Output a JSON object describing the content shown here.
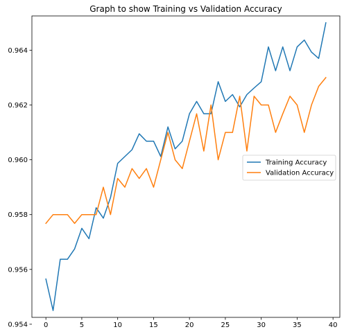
{
  "chart_data": {
    "type": "line",
    "title": "Graph to show Training vs Validation Accuracy",
    "xlabel": "",
    "ylabel": "",
    "xlim": [
      -1.95,
      40.95
    ],
    "ylim": [
      0.95425,
      0.96525
    ],
    "xticks": [
      0,
      5,
      10,
      15,
      20,
      25,
      30,
      35,
      40
    ],
    "yticks": [
      0.954,
      0.956,
      0.958,
      0.96,
      0.962,
      0.964
    ],
    "ytick_labels": [
      "0.954",
      "0.956",
      "0.958",
      "0.960",
      "0.962",
      "0.964"
    ],
    "grid": false,
    "legend_position": "center-right",
    "x": [
      0,
      1,
      2,
      3,
      4,
      5,
      6,
      7,
      8,
      9,
      10,
      11,
      12,
      13,
      14,
      15,
      16,
      17,
      18,
      19,
      20,
      21,
      22,
      23,
      24,
      25,
      26,
      27,
      28,
      29,
      30,
      31,
      32,
      33,
      34,
      35,
      36,
      37,
      38,
      39
    ],
    "series": [
      {
        "name": "Training Accuracy",
        "color": "#1f77b4",
        "values": [
          0.95565,
          0.9545,
          0.95637,
          0.95637,
          0.95675,
          0.9575,
          0.95712,
          0.95825,
          0.95787,
          0.95862,
          0.95987,
          0.96012,
          0.96037,
          0.96095,
          0.96068,
          0.96068,
          0.96012,
          0.9612,
          0.9604,
          0.96068,
          0.96168,
          0.96213,
          0.96168,
          0.96168,
          0.96285,
          0.96213,
          0.96238,
          0.96193,
          0.96238,
          0.96262,
          0.96285,
          0.96412,
          0.96325,
          0.96412,
          0.96325,
          0.96412,
          0.96437,
          0.96393,
          0.9637,
          0.965
        ]
      },
      {
        "name": "Validation Accuracy",
        "color": "#ff7f0e",
        "values": [
          0.95768,
          0.958,
          0.958,
          0.958,
          0.95768,
          0.958,
          0.958,
          0.958,
          0.959,
          0.958,
          0.95932,
          0.959,
          0.95968,
          0.95932,
          0.95968,
          0.959,
          0.96,
          0.961,
          0.96,
          0.95968,
          0.96068,
          0.96168,
          0.96032,
          0.962,
          0.96,
          0.961,
          0.961,
          0.96232,
          0.96032,
          0.96232,
          0.962,
          0.962,
          0.961,
          0.96168,
          0.96232,
          0.962,
          0.961,
          0.962,
          0.96268,
          0.963
        ]
      }
    ]
  }
}
